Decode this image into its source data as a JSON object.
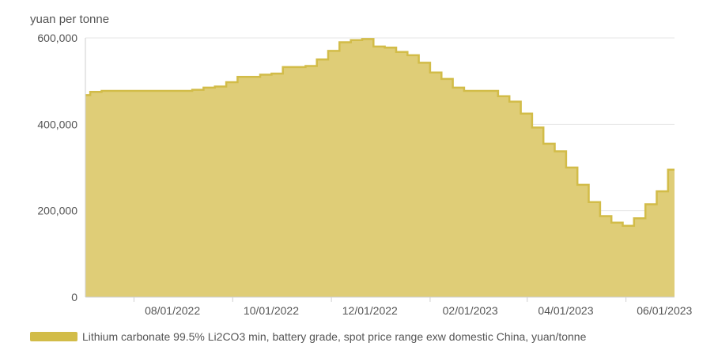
{
  "chart_data": {
    "type": "area",
    "ylabel": "yuan per tonne",
    "y_ticks": [
      "600,000",
      "400,000",
      "200,000",
      "0"
    ],
    "y_tick_values": [
      600000,
      400000,
      200000,
      0
    ],
    "ylim": [
      0,
      600000
    ],
    "x_ticks": [
      "08/01/2022",
      "10/01/2022",
      "12/01/2022",
      "02/01/2023",
      "04/01/2023",
      "06/01/2023"
    ],
    "xlim": [
      "2022-06-17",
      "2023-06-16"
    ],
    "grid": "horizontal",
    "legend_position": "bottom-left",
    "series": [
      {
        "name": "Lithium carbonate 99.5% Li2CO3 min, battery grade, spot price range exw domestic China, yuan/tonne",
        "color": "#d2bc48",
        "fill": "#dfcd77",
        "x": [
          "2022-06-17",
          "2022-06-20",
          "2022-06-27",
          "2022-07-04",
          "2022-07-11",
          "2022-07-18",
          "2022-07-25",
          "2022-08-01",
          "2022-08-08",
          "2022-08-15",
          "2022-08-22",
          "2022-08-29",
          "2022-09-05",
          "2022-09-12",
          "2022-09-19",
          "2022-09-26",
          "2022-10-03",
          "2022-10-10",
          "2022-10-17",
          "2022-10-24",
          "2022-10-31",
          "2022-11-07",
          "2022-11-14",
          "2022-11-21",
          "2022-11-28",
          "2022-12-05",
          "2022-12-12",
          "2022-12-19",
          "2022-12-26",
          "2023-01-02",
          "2023-01-09",
          "2023-01-16",
          "2023-01-23",
          "2023-01-30",
          "2023-02-06",
          "2023-02-13",
          "2023-02-20",
          "2023-02-27",
          "2023-03-06",
          "2023-03-13",
          "2023-03-20",
          "2023-03-27",
          "2023-04-03",
          "2023-04-10",
          "2023-04-17",
          "2023-04-24",
          "2023-05-01",
          "2023-05-08",
          "2023-05-15",
          "2023-05-22",
          "2023-05-29",
          "2023-06-05",
          "2023-06-12"
        ],
        "y": [
          467500,
          475000,
          477500,
          477500,
          477500,
          477500,
          477500,
          477500,
          477500,
          477500,
          480000,
          485000,
          487500,
          497500,
          510000,
          510000,
          515000,
          517500,
          532500,
          532500,
          535000,
          550000,
          570000,
          590000,
          595000,
          597500,
          580000,
          577500,
          567500,
          560000,
          542500,
          520000,
          505000,
          485000,
          477500,
          477500,
          477500,
          465000,
          452500,
          425000,
          392500,
          355000,
          337500,
          300000,
          260000,
          220000,
          187500,
          172500,
          165000,
          182500,
          215000,
          245000,
          295000
        ]
      }
    ]
  }
}
